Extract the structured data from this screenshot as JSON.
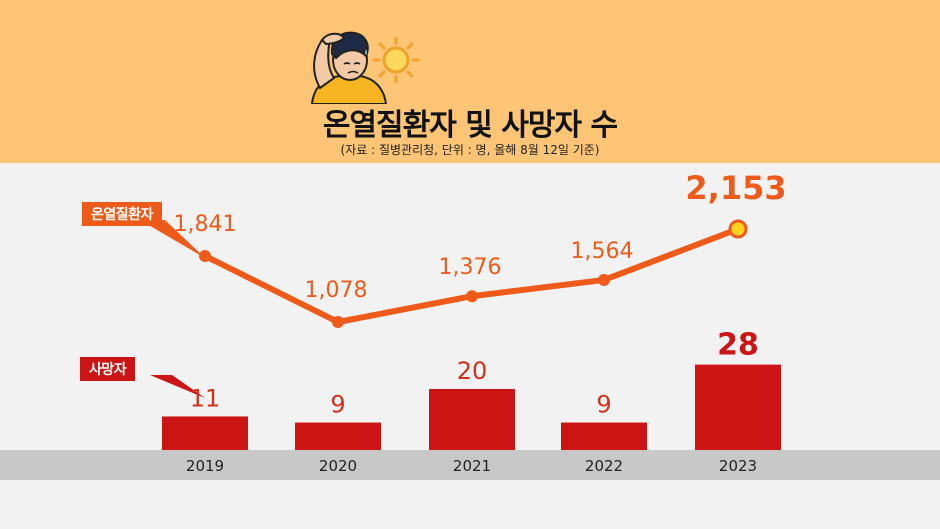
{
  "title": "온열질환자 및 사망자 수",
  "subtitle": "(자료 : 질병관리청, 단위 : 명, 올해 8월 12일 기준)",
  "colors": {
    "header_bg": "#fdc575",
    "line": "#ee5a1a",
    "bar": "#cc1414",
    "highlight_point": "#ffd21f",
    "axis_band": "#c8c8c8"
  },
  "icons": [
    "hot-person-icon",
    "sun-icon"
  ],
  "chart_data": [
    {
      "type": "line",
      "series": [
        {
          "name": "온열질환자",
          "values": [
            1841,
            1078,
            1376,
            1564,
            2153
          ]
        }
      ],
      "categories": [
        "2019",
        "2020",
        "2021",
        "2022",
        "2023"
      ],
      "data_labels": [
        "1,841",
        "1,078",
        "1,376",
        "1,564",
        "2,153"
      ],
      "highlight_index": 4
    },
    {
      "type": "bar",
      "series": [
        {
          "name": "사망자",
          "values": [
            11,
            9,
            20,
            9,
            28
          ]
        }
      ],
      "categories": [
        "2019",
        "2020",
        "2021",
        "2022",
        "2023"
      ],
      "data_labels": [
        "11",
        "9",
        "20",
        "9",
        "28"
      ],
      "highlight_index": 4
    }
  ]
}
